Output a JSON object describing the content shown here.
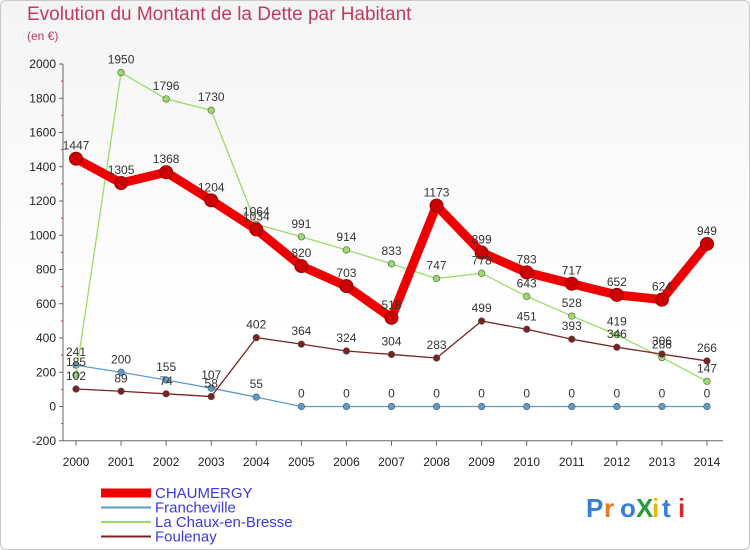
{
  "title": "Evolution du Montant de la Dette par Habitant",
  "unit": "(en €)",
  "logo": "ProXiti",
  "chart_data": {
    "type": "line",
    "title": "Evolution du Montant de la Dette par Habitant",
    "ylabel": "(en €)",
    "x": [
      "2000",
      "2001",
      "2002",
      "2003",
      "2004",
      "2005",
      "2006",
      "2007",
      "2008",
      "2009",
      "2010",
      "2011",
      "2012",
      "2013",
      "2014"
    ],
    "ylim": [
      -200,
      2000
    ],
    "yticks": [
      -200,
      0,
      200,
      400,
      600,
      800,
      1000,
      1200,
      1400,
      1600,
      1800,
      2000
    ],
    "grid": false,
    "legend_position": "bottom-left",
    "series": [
      {
        "name": "CHAUMERGY",
        "color": "#ee0000",
        "values": [
          1447,
          1305,
          1368,
          1204,
          1034,
          820,
          703,
          518,
          1173,
          899,
          783,
          717,
          652,
          624,
          949
        ]
      },
      {
        "name": "Francheville",
        "color": "#5c9ccc",
        "values": [
          241,
          200,
          155,
          107,
          55,
          0,
          0,
          0,
          0,
          0,
          0,
          0,
          0,
          0,
          0
        ]
      },
      {
        "name": "La Chaux-en-Bresse",
        "color": "#99dd66",
        "values": [
          185,
          1950,
          1796,
          1730,
          1064,
          991,
          914,
          833,
          747,
          778,
          643,
          528,
          419,
          286,
          147
        ]
      },
      {
        "name": "Foulenay",
        "color": "#7a2222",
        "values": [
          102,
          89,
          74,
          58,
          402,
          364,
          324,
          304,
          283,
          499,
          451,
          393,
          346,
          306,
          266
        ]
      }
    ]
  }
}
